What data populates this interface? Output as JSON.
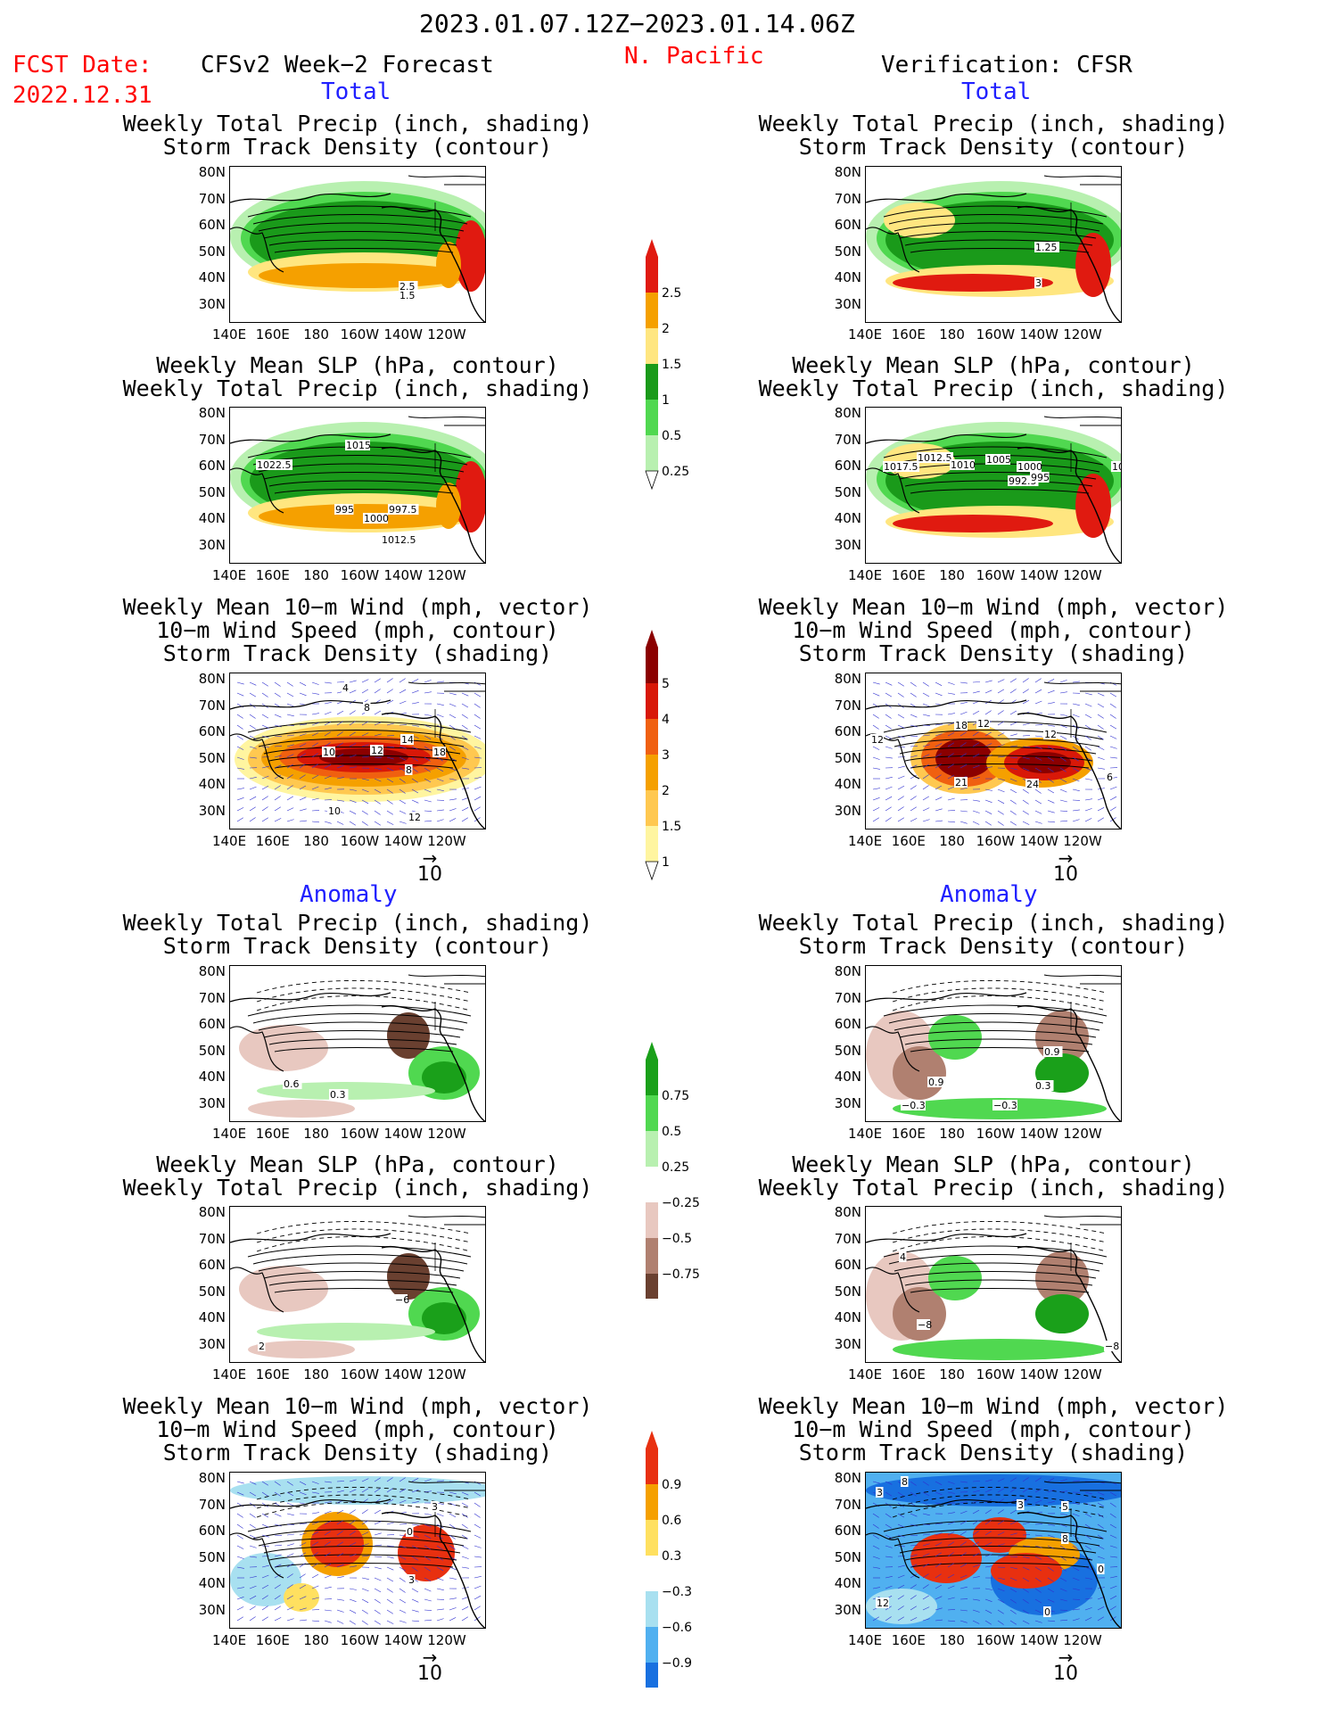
{
  "header": {
    "period": "2023.01.07.12Z−2023.01.14.06Z",
    "region": "N. Pacific",
    "fcst_date_label": "FCST Date:",
    "fcst_date_value": "2022.12.31",
    "forecast_title": "CFSv2 Week−2 Forecast",
    "verification_title": "Verification: CFSR"
  },
  "section_labels": {
    "total": "Total",
    "anomaly": "Anomaly"
  },
  "panel_titles": {
    "precip_storm": "Weekly Total Precip (inch, shading)\nStorm Track Density (contour)",
    "slp_precip": "Weekly Mean SLP (hPa, contour)\nWeekly Total Precip (inch, shading)",
    "wind_storm": "Weekly Mean 10−m Wind (mph, vector)\n10−m Wind Speed (mph, contour)\nStorm Track Density (shading)"
  },
  "axes": {
    "lat_labels": [
      "80N",
      "70N",
      "60N",
      "50N",
      "40N",
      "30N"
    ],
    "lon_labels": [
      "140E",
      "160E",
      "180",
      "160W",
      "140W",
      "120W"
    ]
  },
  "vector_ref": "10",
  "colorbars": {
    "precip_total": [
      "2.5",
      "2",
      "1.5",
      "1",
      "0.5",
      "0.25"
    ],
    "storm_total": [
      "5",
      "4",
      "3",
      "2",
      "1.5",
      "1"
    ],
    "precip_anom": [
      "0.75",
      "0.5",
      "0.25",
      "−0.25",
      "−0.5",
      "−0.75"
    ],
    "storm_anom": [
      "0.9",
      "0.6",
      "0.3",
      "−0.3",
      "−0.6",
      "−0.9"
    ],
    "colors": {
      "precip_total": [
        "#e01a10",
        "#f5a000",
        "#ffe680",
        "#1a9a1a",
        "#50d850",
        "#b8f0b0"
      ],
      "storm_total": [
        "#8b0000",
        "#d81808",
        "#f06010",
        "#f5a000",
        "#ffc850",
        "#fff5a0"
      ],
      "precip_anom": [
        "#1aa01a",
        "#50d850",
        "#b8f0b0",
        "#e8c8c0",
        "#b08070",
        "#6a4030"
      ],
      "storm_anom": [
        "#e83010",
        "#f5a000",
        "#ffe060",
        "#a8e0f0",
        "#50b0f0",
        "#1870e0"
      ]
    }
  },
  "contour_labels": {
    "fc_precip_total": [
      "2.5",
      "1.5"
    ],
    "vf_precip_total": [
      "1.25",
      "3"
    ],
    "fc_slp_total": [
      "1015",
      "1022.5",
      "995",
      "997.5",
      "1000",
      "1012.5"
    ],
    "vf_slp_total": [
      "1017.5",
      "1012.5",
      "1010",
      "1005",
      "1000",
      "992.5",
      "995",
      "1015"
    ],
    "fc_wind_total": [
      "4",
      "8",
      "10",
      "12",
      "14",
      "18",
      "8",
      "10",
      "12"
    ],
    "vf_wind_total": [
      "12",
      "18",
      "12",
      "12",
      "21",
      "24",
      "6"
    ],
    "fc_precip_anom": [
      "0.6",
      "0.3"
    ],
    "vf_precip_anom": [
      "0.9",
      "0.3",
      "0.9",
      "−0.3",
      "−0.3"
    ],
    "fc_slp_anom": [
      "−6",
      "2"
    ],
    "vf_slp_anom": [
      "4",
      "−8",
      "−8"
    ],
    "fc_wind_anom": [
      "3",
      "0",
      "3"
    ],
    "vf_wind_anom": [
      "8",
      "3",
      "3",
      "5",
      "8",
      "0",
      "12",
      "0"
    ]
  }
}
